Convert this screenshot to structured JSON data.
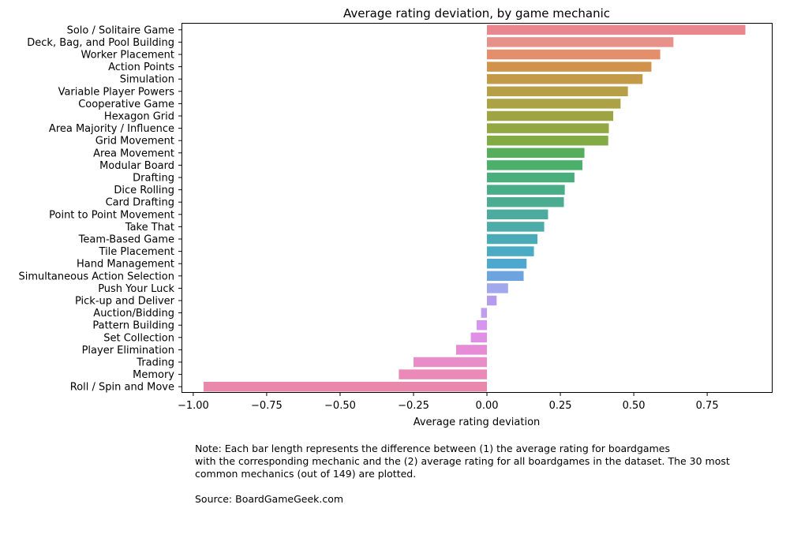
{
  "chart_data": {
    "type": "bar",
    "orientation": "horizontal",
    "title": "Average rating deviation, by game mechanic",
    "xlabel": "Average rating deviation",
    "ylabel": "",
    "xlim": [
      -1.04,
      0.97
    ],
    "xticks": [
      -1.0,
      -0.75,
      -0.5,
      -0.25,
      0.0,
      0.25,
      0.5,
      0.75
    ],
    "xtick_labels": [
      "−1.00",
      "−0.75",
      "−0.50",
      "−0.25",
      "0.00",
      "0.25",
      "0.50",
      "0.75"
    ],
    "grid": false,
    "legend": false,
    "categories": [
      "Solo / Solitaire Game",
      "Deck, Bag, and Pool Building",
      "Worker Placement",
      "Action Points",
      "Simulation",
      "Variable Player Powers",
      "Cooperative Game",
      "Hexagon Grid",
      "Area Majority / Influence",
      "Grid Movement",
      "Area Movement",
      "Modular Board",
      "Drafting",
      "Dice Rolling",
      "Card Drafting",
      "Point to Point Movement",
      "Take That",
      "Team-Based Game",
      "Tile Placement",
      "Hand Management",
      "Simultaneous Action Selection",
      "Push Your Luck",
      "Pick-up and Deliver",
      "Auction/Bidding",
      "Pattern Building",
      "Set Collection",
      "Player Elimination",
      "Trading",
      "Memory",
      "Roll / Spin and Move"
    ],
    "values": [
      0.88,
      0.635,
      0.59,
      0.56,
      0.53,
      0.48,
      0.455,
      0.43,
      0.415,
      0.413,
      0.332,
      0.325,
      0.298,
      0.265,
      0.262,
      0.208,
      0.195,
      0.172,
      0.16,
      0.135,
      0.125,
      0.072,
      0.033,
      -0.02,
      -0.035,
      -0.055,
      -0.105,
      -0.25,
      -0.3,
      -0.965
    ],
    "colors": [
      "#e9868e",
      "#e8908a",
      "#e58e6c",
      "#d1934c",
      "#c39a47",
      "#b79f48",
      "#aba245",
      "#9fa442",
      "#93a743",
      "#82ab43",
      "#56ae5c",
      "#4ab06a",
      "#49ae7b",
      "#49ad88",
      "#4bac92",
      "#4cab9e",
      "#4daba8",
      "#49abb5",
      "#4aabc2",
      "#4ea7cf",
      "#6da4de",
      "#a1a8ec",
      "#b39cec",
      "#c39ded",
      "#d796ed",
      "#df8fe4",
      "#e88bd6",
      "#e98dc9",
      "#eb8ab9",
      "#ea88ab"
    ]
  },
  "annotations": {
    "note": "Note: Each bar length represents the difference between (1) the average rating for boardgames\nwith the corresponding mechanic and the (2) average rating for all boardgames in the dataset. The 30 most\ncommon mechanics (out of 149) are plotted.",
    "source": "Source: BoardGameGeek.com"
  }
}
